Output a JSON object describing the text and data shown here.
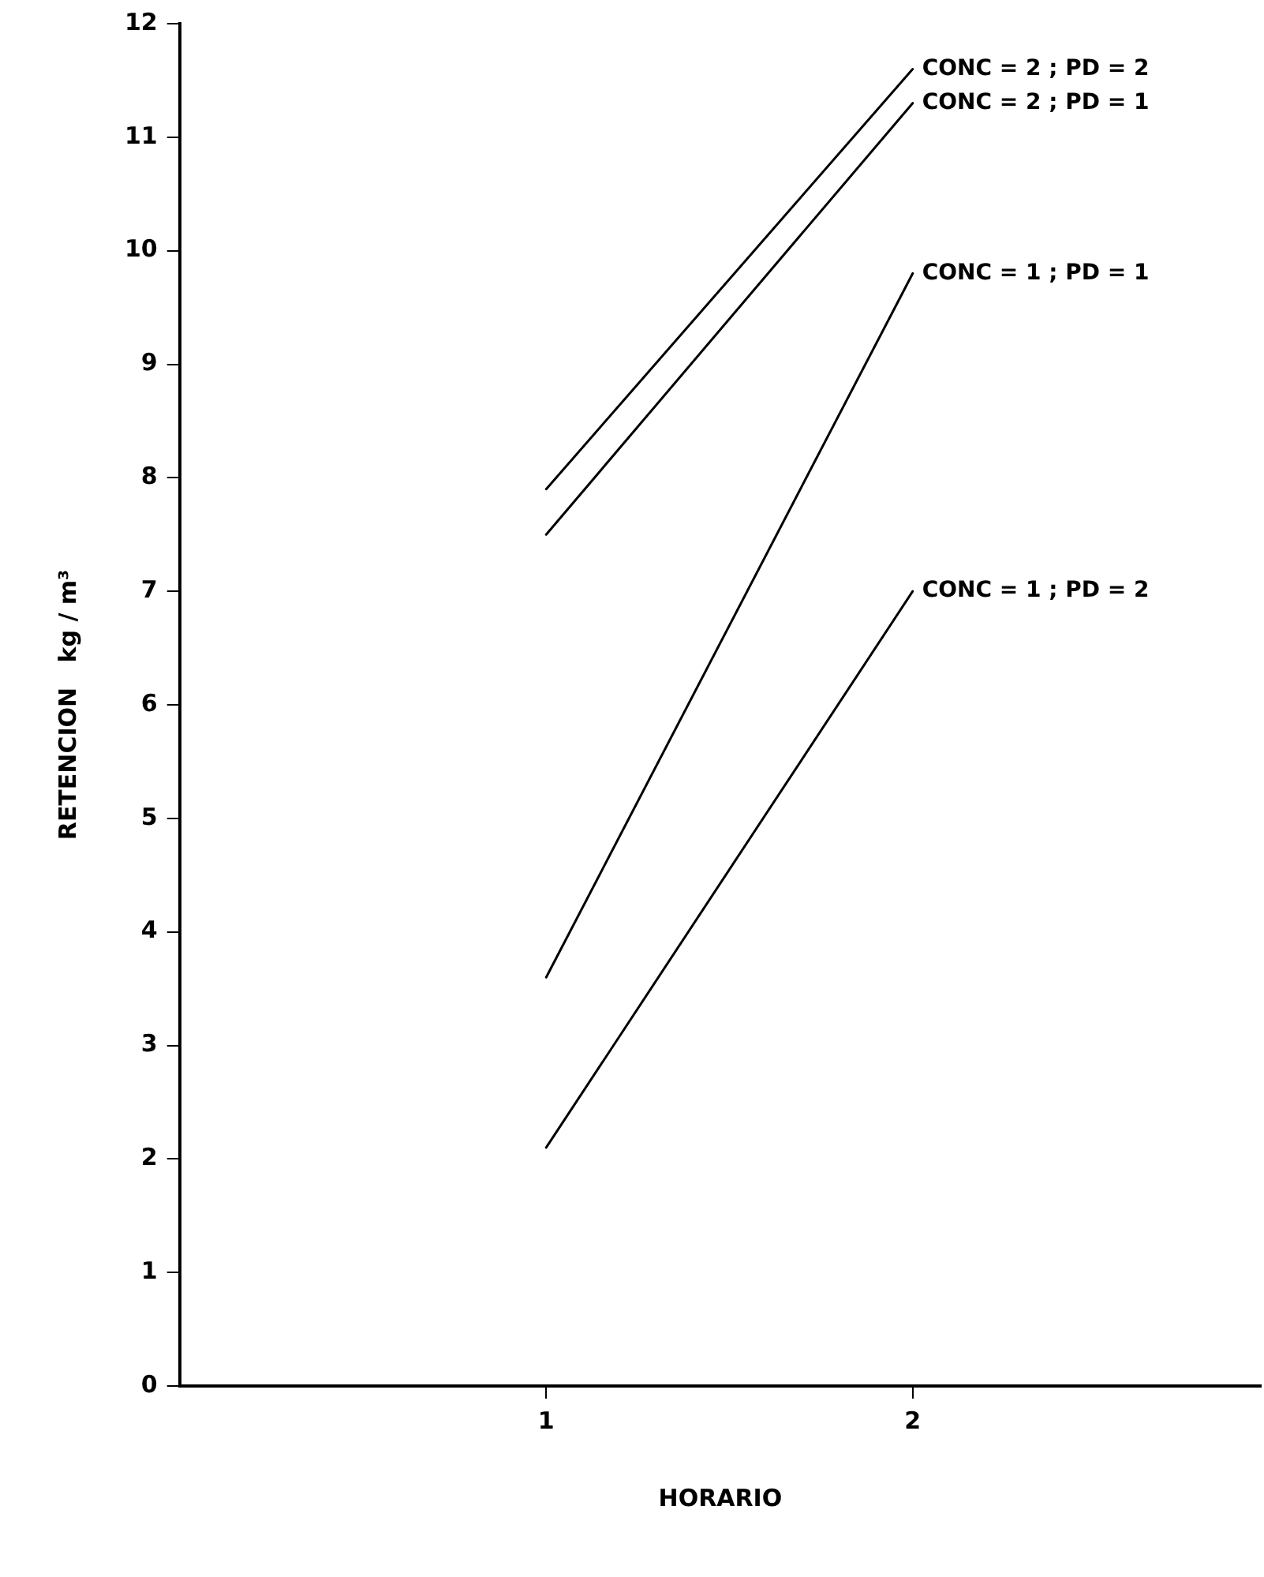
{
  "chart_data": {
    "type": "line",
    "xlabel": "HORARIO",
    "ylabel": "RETENCION   kg / m³",
    "xlim": [
      0,
      2.95
    ],
    "xticks": [
      1,
      2
    ],
    "ylim": [
      0,
      12
    ],
    "yticks": [
      0,
      1,
      2,
      3,
      4,
      5,
      6,
      7,
      8,
      9,
      10,
      11,
      12
    ],
    "grid": false,
    "legend": false,
    "marker": "none",
    "line_style": "solid",
    "x": [
      1,
      2
    ],
    "series": [
      {
        "name": "CONC = 2 ; PD = 2",
        "color": "#000000",
        "values": [
          7.9,
          11.6
        ]
      },
      {
        "name": "CONC = 2 ; PD = 1",
        "color": "#000000",
        "values": [
          7.5,
          11.3
        ]
      },
      {
        "name": "CONC = 1 ; PD = 1",
        "color": "#000000",
        "values": [
          3.6,
          9.8
        ]
      },
      {
        "name": "CONC = 1 ; PD = 2",
        "color": "#000000",
        "values": [
          2.1,
          7.0
        ]
      }
    ]
  }
}
